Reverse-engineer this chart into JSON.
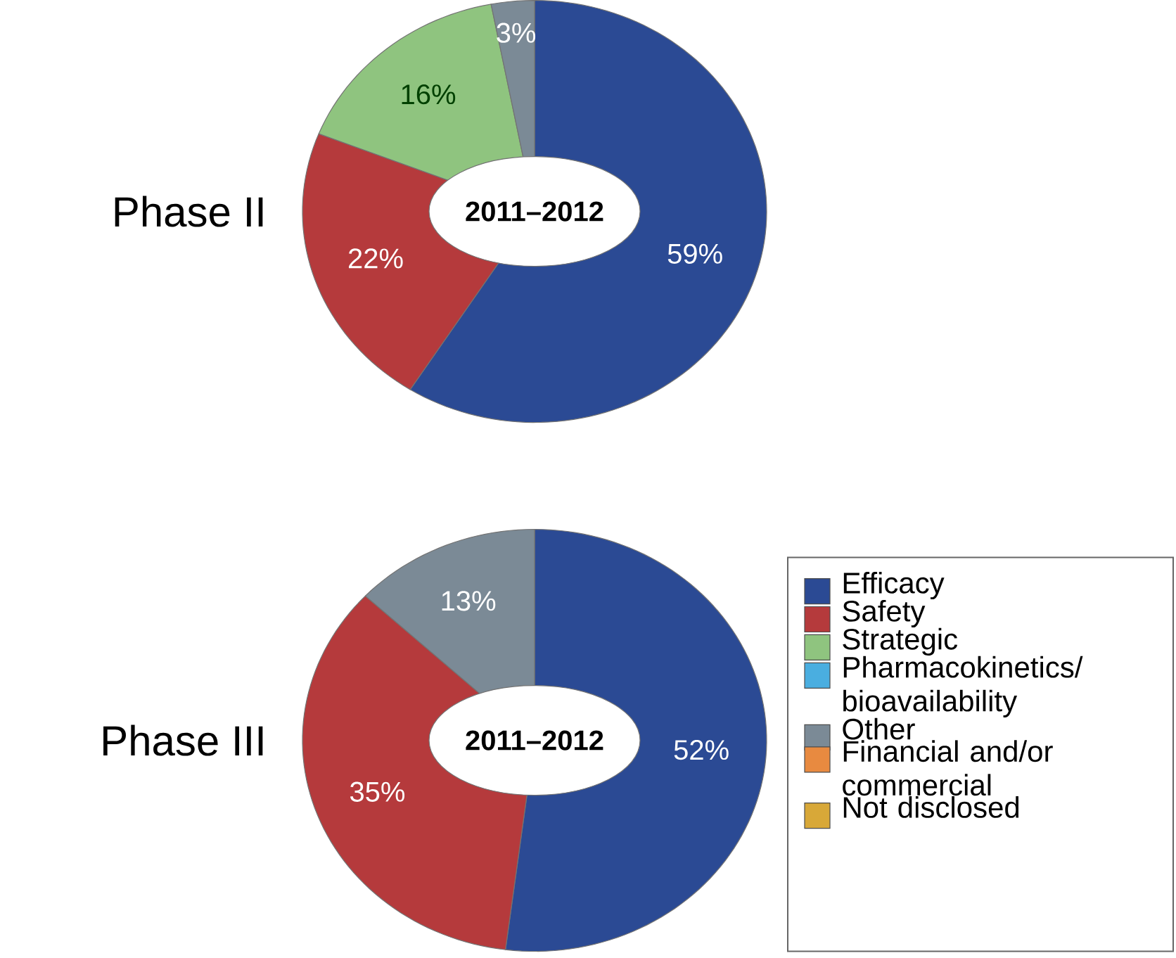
{
  "chart_data": [
    {
      "type": "donut",
      "title": "Phase II",
      "annotations": [
        "2011–2012"
      ],
      "categories": [
        null,
        null,
        null,
        null
      ],
      "values": [
        59,
        22,
        16,
        3
      ],
      "value_labels": [
        "59%",
        "22%",
        "16%",
        "3%"
      ],
      "colors": [
        "#2b4a94",
        "#b53a3c",
        "#8fc47f",
        "#7b8a96"
      ]
    },
    {
      "type": "donut",
      "title": "Phase III",
      "annotations": [
        "2011–2012"
      ],
      "categories": [
        "Efficacy",
        "Safety",
        "Strategic",
        "Pharmacokinetics/ bioavailability",
        "Other",
        "Financial and/or commercial",
        "Not disclosed"
      ],
      "values": [
        52,
        35,
        0,
        0,
        13,
        0,
        0
      ],
      "value_labels": [
        "52%",
        "35%",
        null,
        null,
        "13%",
        null,
        null
      ],
      "colors": [
        "#2b4a94",
        "#b53a3c",
        "#8fc47f",
        "#4aaee0",
        "#7b8a96",
        "#e88a40",
        "#d8a838"
      ],
      "legend": "right"
    }
  ]
}
